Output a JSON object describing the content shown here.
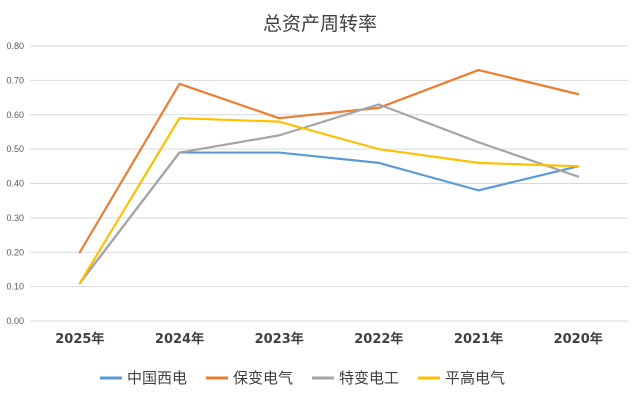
{
  "chart_data": {
    "type": "line",
    "title": "总资产周转率",
    "xlabel": "",
    "ylabel": "",
    "categories": [
      "2025年",
      "2024年",
      "2023年",
      "2022年",
      "2021年",
      "2020年"
    ],
    "ylim": [
      0,
      0.8
    ],
    "yticks": [
      "0.00",
      "0.10",
      "0.20",
      "0.30",
      "0.40",
      "0.50",
      "0.60",
      "0.70",
      "0.80"
    ],
    "grid": true,
    "legend_position": "bottom",
    "series": [
      {
        "name": "中国西电",
        "color": "#5B9BD5",
        "values": [
          0.11,
          0.49,
          0.49,
          0.46,
          0.38,
          0.45
        ]
      },
      {
        "name": "保变电气",
        "color": "#ED7D31",
        "values": [
          0.2,
          0.69,
          0.59,
          0.62,
          0.73,
          0.66
        ]
      },
      {
        "name": "特变电工",
        "color": "#A5A5A5",
        "values": [
          0.11,
          0.49,
          0.54,
          0.63,
          0.52,
          0.42
        ]
      },
      {
        "name": "平高电气",
        "color": "#FFC000",
        "values": [
          0.11,
          0.59,
          0.58,
          0.5,
          0.46,
          0.45
        ]
      }
    ]
  }
}
